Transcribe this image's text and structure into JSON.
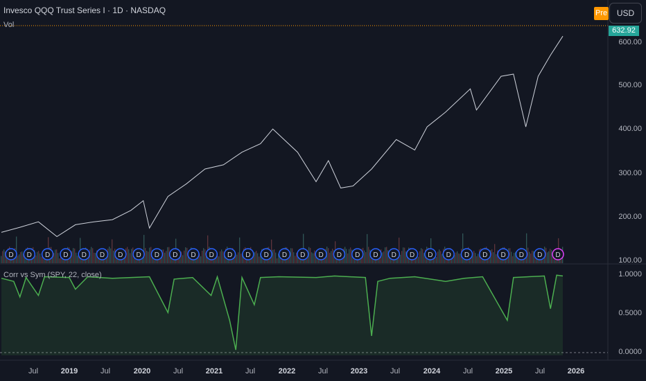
{
  "header": {
    "title": "Invesco QQQ Trust Series I · 1D · NASDAQ",
    "volume_label": "Vol",
    "pre_badge": "Pre",
    "currency": "USD"
  },
  "indicator": {
    "label": "Corr vs Sym (SPY, 22, close)"
  },
  "price_axis": {
    "labels": [
      "600.00",
      "500.00",
      "400.00",
      "300.00",
      "200.00",
      "100.00"
    ],
    "last_price": "632.92"
  },
  "indicator_axis": {
    "labels": [
      "1.0000",
      "0.5000",
      "0.0000"
    ]
  },
  "time_axis": {
    "labels": [
      "Jul",
      "2019",
      "Jul",
      "2020",
      "Jul",
      "2021",
      "Jul",
      "2022",
      "Jul",
      "2023",
      "Jul",
      "2024",
      "Jul",
      "2025",
      "Jul",
      "2026"
    ]
  },
  "dividend_marker": "D",
  "colors": {
    "background": "#131722",
    "up": "#26a69a",
    "down": "#ef5350",
    "corr_line": "#4caf50",
    "accent": "#2962ff"
  },
  "chart_data": {
    "type": "line",
    "x_start": "2018-03",
    "x_end": "2025-10",
    "price_ylim": [
      90,
      650
    ],
    "price_series": [
      {
        "x": "2018-03",
        "y": 160
      },
      {
        "x": "2018-06",
        "y": 172
      },
      {
        "x": "2018-09",
        "y": 185
      },
      {
        "x": "2018-12",
        "y": 150
      },
      {
        "x": "2019-03",
        "y": 178
      },
      {
        "x": "2019-06",
        "y": 185
      },
      {
        "x": "2019-09",
        "y": 190
      },
      {
        "x": "2019-12",
        "y": 212
      },
      {
        "x": "2020-02",
        "y": 235
      },
      {
        "x": "2020-03",
        "y": 170
      },
      {
        "x": "2020-06",
        "y": 245
      },
      {
        "x": "2020-09",
        "y": 275
      },
      {
        "x": "2020-12",
        "y": 310
      },
      {
        "x": "2021-03",
        "y": 320
      },
      {
        "x": "2021-06",
        "y": 350
      },
      {
        "x": "2021-09",
        "y": 370
      },
      {
        "x": "2021-11",
        "y": 405
      },
      {
        "x": "2022-03",
        "y": 350
      },
      {
        "x": "2022-06",
        "y": 280
      },
      {
        "x": "2022-08",
        "y": 330
      },
      {
        "x": "2022-10",
        "y": 265
      },
      {
        "x": "2022-12",
        "y": 270
      },
      {
        "x": "2023-03",
        "y": 310
      },
      {
        "x": "2023-07",
        "y": 380
      },
      {
        "x": "2023-10",
        "y": 355
      },
      {
        "x": "2023-12",
        "y": 410
      },
      {
        "x": "2024-03",
        "y": 445
      },
      {
        "x": "2024-07",
        "y": 500
      },
      {
        "x": "2024-08",
        "y": 450
      },
      {
        "x": "2024-12",
        "y": 530
      },
      {
        "x": "2025-02",
        "y": 535
      },
      {
        "x": "2025-04",
        "y": 410
      },
      {
        "x": "2025-06",
        "y": 530
      },
      {
        "x": "2025-08",
        "y": 580
      },
      {
        "x": "2025-10",
        "y": 625
      }
    ],
    "corr_ylim": [
      -0.05,
      1.08
    ],
    "corr_series": [
      {
        "x": "2018-03",
        "y": 0.94
      },
      {
        "x": "2018-05",
        "y": 0.9
      },
      {
        "x": "2018-06",
        "y": 0.7
      },
      {
        "x": "2018-07",
        "y": 0.95
      },
      {
        "x": "2018-09",
        "y": 0.72
      },
      {
        "x": "2018-10",
        "y": 0.96
      },
      {
        "x": "2019-02",
        "y": 0.95
      },
      {
        "x": "2019-03",
        "y": 0.8
      },
      {
        "x": "2019-05",
        "y": 0.96
      },
      {
        "x": "2019-09",
        "y": 0.94
      },
      {
        "x": "2019-12",
        "y": 0.95
      },
      {
        "x": "2020-03",
        "y": 0.96
      },
      {
        "x": "2020-06",
        "y": 0.5
      },
      {
        "x": "2020-07",
        "y": 0.93
      },
      {
        "x": "2020-10",
        "y": 0.95
      },
      {
        "x": "2021-01",
        "y": 0.72
      },
      {
        "x": "2021-02",
        "y": 0.96
      },
      {
        "x": "2021-04",
        "y": 0.4
      },
      {
        "x": "2021-05",
        "y": 0.02
      },
      {
        "x": "2021-06",
        "y": 0.95
      },
      {
        "x": "2021-08",
        "y": 0.6
      },
      {
        "x": "2021-09",
        "y": 0.95
      },
      {
        "x": "2021-12",
        "y": 0.96
      },
      {
        "x": "2022-06",
        "y": 0.95
      },
      {
        "x": "2022-09",
        "y": 0.97
      },
      {
        "x": "2023-02",
        "y": 0.95
      },
      {
        "x": "2023-03",
        "y": 0.2
      },
      {
        "x": "2023-04",
        "y": 0.9
      },
      {
        "x": "2023-06",
        "y": 0.94
      },
      {
        "x": "2023-10",
        "y": 0.96
      },
      {
        "x": "2024-03",
        "y": 0.9
      },
      {
        "x": "2024-06",
        "y": 0.94
      },
      {
        "x": "2024-09",
        "y": 0.96
      },
      {
        "x": "2025-01",
        "y": 0.4
      },
      {
        "x": "2025-02",
        "y": 0.95
      },
      {
        "x": "2025-07",
        "y": 0.97
      },
      {
        "x": "2025-08",
        "y": 0.55
      },
      {
        "x": "2025-09",
        "y": 0.98
      },
      {
        "x": "2025-10",
        "y": 0.97
      }
    ]
  }
}
